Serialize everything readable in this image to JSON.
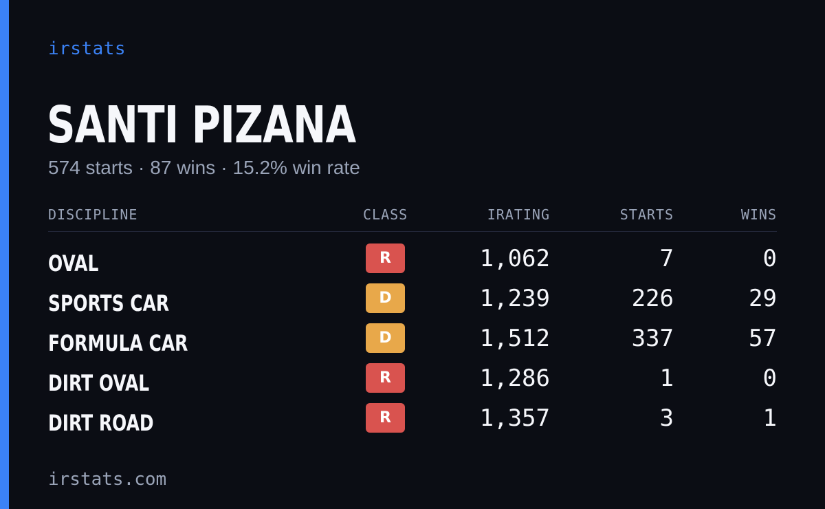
{
  "brand": "irstats",
  "driver": {
    "name": "SANTI PIZANA",
    "starts": "574 starts",
    "wins": "87 wins",
    "win_rate": "15.2% win rate",
    "separator": "·"
  },
  "table": {
    "headers": {
      "discipline": "DISCIPLINE",
      "class": "CLASS",
      "irating": "IRATING",
      "starts": "STARTS",
      "wins": "WINS"
    },
    "rows": [
      {
        "discipline": "OVAL",
        "class": "R",
        "irating": "1,062",
        "starts": "7",
        "wins": "0"
      },
      {
        "discipline": "SPORTS CAR",
        "class": "D",
        "irating": "1,239",
        "starts": "226",
        "wins": "29"
      },
      {
        "discipline": "FORMULA CAR",
        "class": "D",
        "irating": "1,512",
        "starts": "337",
        "wins": "57"
      },
      {
        "discipline": "DIRT OVAL",
        "class": "R",
        "irating": "1,286",
        "starts": "1",
        "wins": "0"
      },
      {
        "discipline": "DIRT ROAD",
        "class": "R",
        "irating": "1,357",
        "starts": "3",
        "wins": "1"
      }
    ]
  },
  "footer": "irstats.com",
  "colors": {
    "background": "#0b0d14",
    "accent": "#3b82f6",
    "class_r": "#d9534f",
    "class_d": "#e8a84a",
    "muted_text": "#9aa4b8"
  }
}
